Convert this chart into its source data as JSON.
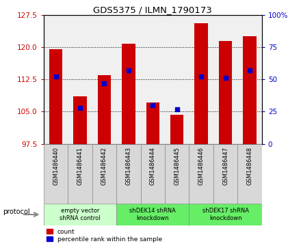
{
  "title": "GDS5375 / ILMN_1790173",
  "samples": [
    "GSM1486440",
    "GSM1486441",
    "GSM1486442",
    "GSM1486443",
    "GSM1486444",
    "GSM1486445",
    "GSM1486446",
    "GSM1486447",
    "GSM1486448"
  ],
  "count_values": [
    119.5,
    108.5,
    113.5,
    120.8,
    107.2,
    104.2,
    125.5,
    121.5,
    122.5
  ],
  "percentile_values": [
    52,
    28,
    47,
    57,
    30,
    27,
    52,
    51,
    57
  ],
  "ylim_left": [
    97.5,
    127.5
  ],
  "ylim_right": [
    0,
    100
  ],
  "yticks_left": [
    97.5,
    105,
    112.5,
    120,
    127.5
  ],
  "yticks_right": [
    0,
    25,
    50,
    75,
    100
  ],
  "group_starts": [
    0,
    3,
    6
  ],
  "group_ends": [
    3,
    6,
    9
  ],
  "group_labels": [
    "empty vector\nshRNA control",
    "shDEK14 shRNA\nknockdown",
    "shDEK17 shRNA\nknockdown"
  ],
  "group_colors": [
    "#ccffcc",
    "#66ee66",
    "#66ee66"
  ],
  "bar_color": "#cc0000",
  "dot_color": "#0000cc",
  "bar_width": 0.55,
  "dot_size": 18,
  "legend_count_color": "#cc0000",
  "legend_dot_color": "#0000cc",
  "protocol_label": "protocol",
  "tick_label_color_left": "#cc0000",
  "tick_label_color_right": "#0000cc",
  "sample_box_color": "#d8d8d8",
  "plot_bg": "#f0f0f0"
}
